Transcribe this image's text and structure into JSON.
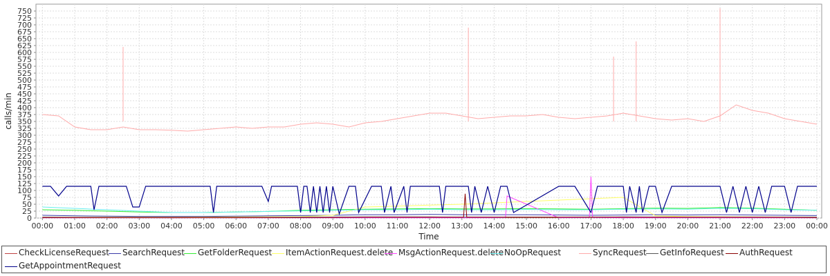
{
  "chart_data": {
    "type": "line",
    "title": "",
    "xlabel": "Time",
    "ylabel": "calls/min",
    "ylim": [
      0,
      775
    ],
    "yticks": [
      0,
      25,
      50,
      75,
      100,
      125,
      150,
      175,
      200,
      225,
      250,
      275,
      300,
      325,
      350,
      375,
      400,
      425,
      450,
      475,
      500,
      525,
      550,
      575,
      600,
      625,
      650,
      675,
      700,
      725,
      750
    ],
    "xticks": [
      "00:00",
      "01:00",
      "02:00",
      "03:00",
      "04:00",
      "05:00",
      "06:00",
      "07:00",
      "08:00",
      "09:00",
      "10:00",
      "11:00",
      "12:00",
      "13:00",
      "14:00",
      "15:00",
      "16:00",
      "17:00",
      "18:00",
      "19:00",
      "20:00",
      "21:00",
      "22:00",
      "23:00",
      "00:00"
    ],
    "xrange_hours": [
      -0.2,
      24.15
    ],
    "grid": true,
    "legend_position": "bottom",
    "series": [
      {
        "name": "CheckLicenseRequest",
        "color": "#c04040",
        "x": [
          0,
          2,
          4,
          6,
          8,
          10,
          12,
          14,
          16,
          18,
          20,
          22,
          24
        ],
        "values": [
          2,
          2,
          1,
          2,
          2,
          3,
          3,
          2,
          2,
          3,
          2,
          2,
          2
        ]
      },
      {
        "name": "SearchRequest",
        "color": "#3a3aa8",
        "x": [
          0,
          1,
          2,
          3,
          4,
          5,
          6,
          7,
          8,
          9,
          10,
          11,
          12,
          13,
          14,
          15,
          16,
          17,
          18,
          19,
          20,
          21,
          22,
          23,
          24
        ],
        "values": [
          10,
          8,
          7,
          6,
          6,
          6,
          7,
          8,
          9,
          10,
          12,
          12,
          13,
          12,
          12,
          12,
          11,
          10,
          11,
          12,
          11,
          12,
          11,
          10,
          9
        ]
      },
      {
        "name": "GetFolderRequest",
        "color": "#33ee33",
        "x": [
          0,
          1,
          2,
          3,
          4,
          5,
          6,
          7,
          8,
          9,
          10,
          11,
          12,
          13,
          14,
          15,
          16,
          17,
          18,
          19,
          20,
          21,
          22,
          23,
          24
        ],
        "values": [
          30,
          28,
          25,
          22,
          20,
          20,
          22,
          24,
          28,
          30,
          32,
          33,
          34,
          33,
          33,
          34,
          33,
          32,
          34,
          36,
          35,
          38,
          36,
          32,
          28
        ]
      },
      {
        "name": "ItemActionRequest.delete",
        "color": "#ffff66",
        "x": [
          0,
          2,
          4,
          6,
          8,
          9,
          10,
          11,
          12,
          13,
          14,
          15,
          16,
          17,
          18,
          19,
          20,
          22,
          24
        ],
        "values": [
          3,
          3,
          3,
          4,
          5,
          10,
          40,
          43,
          47,
          50,
          55,
          60,
          65,
          70,
          75,
          8,
          5,
          4,
          3
        ]
      },
      {
        "name": "MsgActionRequest.delete",
        "color": "#ff44ff",
        "x": [
          0,
          2,
          4,
          6,
          8,
          10,
          12,
          14,
          14.35,
          14.4,
          16,
          16.95,
          17.0,
          17.05,
          18,
          20,
          22,
          24
        ],
        "values": [
          1,
          1,
          1,
          1,
          1,
          1,
          1,
          1,
          2,
          80,
          1,
          2,
          150,
          2,
          1,
          1,
          1,
          1
        ]
      },
      {
        "name": "NoOpRequest",
        "color": "#66eeee",
        "x": [
          0,
          1,
          2,
          3,
          4,
          5,
          6,
          7,
          8,
          9,
          10,
          11,
          12,
          13,
          14,
          15,
          16,
          17,
          18,
          19,
          20,
          21,
          22,
          23,
          24
        ],
        "values": [
          40,
          35,
          30,
          25,
          20,
          20,
          22,
          24,
          26,
          28,
          30,
          30,
          32,
          30,
          30,
          31,
          30,
          30,
          32,
          33,
          32,
          35,
          34,
          30,
          28
        ]
      },
      {
        "name": "SyncRequest",
        "color": "#ffaaaa",
        "x": [
          0,
          0.5,
          1,
          1.5,
          2,
          2.5,
          3,
          3.5,
          4,
          4.5,
          5,
          5.5,
          6,
          6.5,
          7,
          7.5,
          8,
          8.5,
          9,
          9.5,
          10,
          10.5,
          11,
          11.5,
          12,
          12.5,
          13,
          13.5,
          14,
          14.5,
          15,
          15.5,
          16,
          16.5,
          17,
          17.5,
          18,
          18.5,
          19,
          19.5,
          20,
          20.5,
          21,
          21.5,
          22,
          22.5,
          23,
          23.5,
          24
        ],
        "values": [
          375,
          370,
          330,
          320,
          320,
          330,
          320,
          320,
          318,
          315,
          320,
          325,
          330,
          325,
          330,
          330,
          340,
          345,
          340,
          330,
          345,
          350,
          360,
          370,
          380,
          380,
          370,
          360,
          365,
          370,
          370,
          375,
          365,
          360,
          365,
          370,
          380,
          370,
          360,
          355,
          360,
          350,
          370,
          410,
          390,
          380,
          360,
          350,
          340
        ],
        "spikes": [
          {
            "x": 2.5,
            "y": 620
          },
          {
            "x": 18.4,
            "y": 640
          },
          {
            "x": 21.0,
            "y": 760
          },
          {
            "x": 13.2,
            "y": 690
          },
          {
            "x": 17.7,
            "y": 585
          }
        ]
      },
      {
        "name": "GetInfoRequest",
        "color": "#555555",
        "x": [
          0,
          2,
          4,
          6,
          8,
          10,
          12,
          14,
          16,
          18,
          20,
          22,
          24
        ],
        "values": [
          3,
          2,
          2,
          2,
          3,
          4,
          4,
          3,
          3,
          4,
          3,
          3,
          3
        ]
      },
      {
        "name": "AuthRequest",
        "color": "#8b0000",
        "x": [
          0,
          2,
          4,
          6,
          8,
          10,
          12,
          13.05,
          13.1,
          13.15,
          14,
          16,
          18,
          20,
          22,
          24
        ],
        "values": [
          2,
          2,
          2,
          2,
          2,
          3,
          3,
          3,
          88,
          3,
          3,
          3,
          3,
          3,
          3,
          2
        ]
      },
      {
        "name": "GetAppointmentRequest",
        "color": "#00008b",
        "x": [
          0,
          0.25,
          0.5,
          0.75,
          1.2,
          1.5,
          1.6,
          1.75,
          2.6,
          2.8,
          3.0,
          3.2,
          5.2,
          5.3,
          5.4,
          6.8,
          7.0,
          7.1,
          7.3,
          7.9,
          8.0,
          8.1,
          8.2,
          8.3,
          8.4,
          8.5,
          8.6,
          8.7,
          8.8,
          8.9,
          9.0,
          9.2,
          9.5,
          9.7,
          9.8,
          10.2,
          10.5,
          10.6,
          10.8,
          10.9,
          11.2,
          11.3,
          11.4,
          12.3,
          12.4,
          12.5,
          13.2,
          13.3,
          13.4,
          13.6,
          13.8,
          14.0,
          14.2,
          14.4,
          14.6,
          16.0,
          16.2,
          16.5,
          17.0,
          17.2,
          18.0,
          18.1,
          18.2,
          18.4,
          18.5,
          18.6,
          18.8,
          19.0,
          19.2,
          19.5,
          19.8,
          21.0,
          21.2,
          21.4,
          21.6,
          21.8,
          22.0,
          22.2,
          22.4,
          22.6,
          23.0,
          23.2,
          23.4,
          23.6,
          24.0
        ],
        "values": [
          115,
          115,
          80,
          115,
          115,
          115,
          30,
          115,
          115,
          40,
          40,
          115,
          115,
          20,
          115,
          115,
          60,
          115,
          115,
          115,
          20,
          115,
          115,
          20,
          115,
          20,
          115,
          20,
          115,
          20,
          115,
          15,
          115,
          115,
          20,
          115,
          115,
          20,
          115,
          20,
          115,
          20,
          115,
          115,
          20,
          115,
          115,
          20,
          115,
          20,
          115,
          20,
          115,
          115,
          20,
          115,
          115,
          115,
          20,
          115,
          115,
          20,
          115,
          20,
          115,
          20,
          115,
          115,
          20,
          115,
          115,
          115,
          20,
          115,
          20,
          115,
          20,
          115,
          20,
          115,
          115,
          20,
          115,
          115,
          115
        ]
      }
    ]
  }
}
